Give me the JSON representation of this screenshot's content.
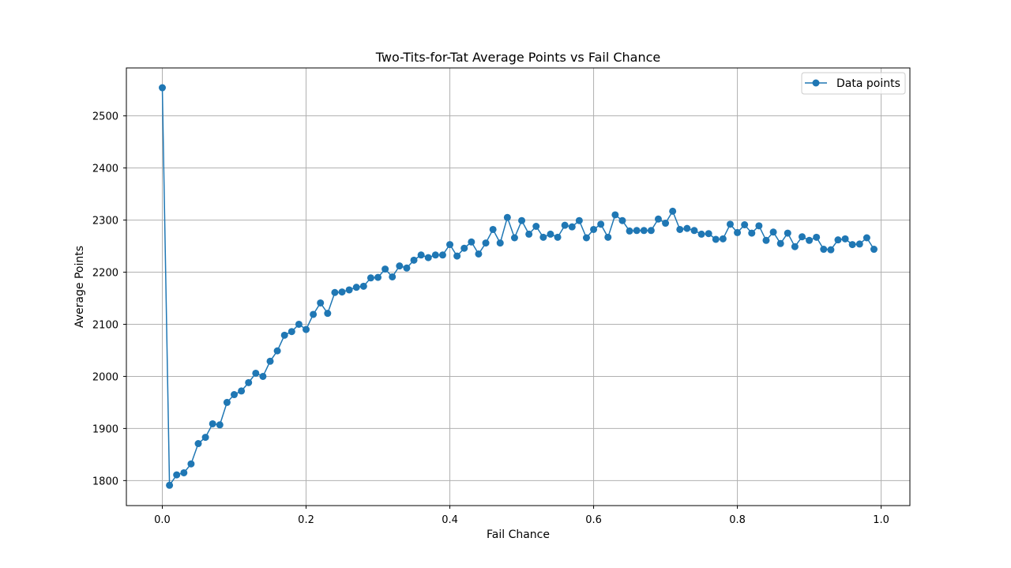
{
  "chart_data": {
    "type": "line",
    "title": "Two-Tits-for-Tat Average Points vs Fail Chance",
    "xlabel": "Fail Chance",
    "ylabel": "Average Points",
    "xlim": [
      -0.05,
      1.04
    ],
    "ylim": [
      1752,
      2592
    ],
    "xticks": [
      0.0,
      0.2,
      0.4,
      0.6,
      0.8,
      1.0
    ],
    "xtick_labels": [
      "0.0",
      "0.2",
      "0.4",
      "0.6",
      "0.8",
      "1.0"
    ],
    "yticks": [
      1800,
      1900,
      2000,
      2100,
      2200,
      2300,
      2400,
      2500
    ],
    "ytick_labels": [
      "1800",
      "1900",
      "2000",
      "2100",
      "2200",
      "2300",
      "2400",
      "2500"
    ],
    "grid": true,
    "legend_position": "top-right",
    "marker": "circle",
    "color": "#1f77b4",
    "series": [
      {
        "name": "Data points",
        "x": [
          0.0,
          0.01,
          0.02,
          0.03,
          0.04,
          0.05,
          0.06,
          0.07,
          0.08,
          0.09,
          0.1,
          0.11,
          0.12,
          0.13,
          0.14,
          0.15,
          0.16,
          0.17,
          0.18,
          0.19,
          0.2,
          0.21,
          0.22,
          0.23,
          0.24,
          0.25,
          0.26,
          0.27,
          0.28,
          0.29,
          0.3,
          0.31,
          0.32,
          0.33,
          0.34,
          0.35,
          0.36,
          0.37,
          0.38,
          0.39,
          0.4,
          0.41,
          0.42,
          0.43,
          0.44,
          0.45,
          0.46,
          0.47,
          0.48,
          0.49,
          0.5,
          0.51,
          0.52,
          0.53,
          0.54,
          0.55,
          0.56,
          0.57,
          0.58,
          0.59,
          0.6,
          0.61,
          0.62,
          0.63,
          0.64,
          0.65,
          0.66,
          0.67,
          0.68,
          0.69,
          0.7,
          0.71,
          0.72,
          0.73,
          0.74,
          0.75,
          0.76,
          0.77,
          0.78,
          0.79,
          0.8,
          0.81,
          0.82,
          0.83,
          0.84,
          0.85,
          0.86,
          0.87,
          0.88,
          0.89,
          0.9,
          0.91,
          0.92,
          0.93,
          0.94,
          0.95,
          0.96,
          0.97,
          0.98,
          0.99
        ],
        "values": [
          2554,
          1791,
          1811,
          1815,
          1832,
          1871,
          1883,
          1909,
          1907,
          1950,
          1965,
          1972,
          1988,
          2006,
          2000,
          2029,
          2049,
          2079,
          2086,
          2100,
          2090,
          2119,
          2141,
          2121,
          2161,
          2162,
          2166,
          2171,
          2173,
          2189,
          2190,
          2206,
          2191,
          2212,
          2208,
          2223,
          2233,
          2228,
          2233,
          2233,
          2253,
          2231,
          2246,
          2258,
          2235,
          2256,
          2282,
          2256,
          2305,
          2266,
          2299,
          2273,
          2288,
          2267,
          2273,
          2267,
          2290,
          2287,
          2299,
          2266,
          2282,
          2292,
          2267,
          2310,
          2299,
          2279,
          2280,
          2280,
          2280,
          2302,
          2294,
          2317,
          2282,
          2284,
          2280,
          2273,
          2274,
          2263,
          2264,
          2292,
          2276,
          2291,
          2275,
          2289,
          2261,
          2277,
          2255,
          2275,
          2249,
          2268,
          2261,
          2267,
          2244,
          2243,
          2262,
          2264,
          2253,
          2254,
          2266,
          2244
        ]
      }
    ]
  }
}
